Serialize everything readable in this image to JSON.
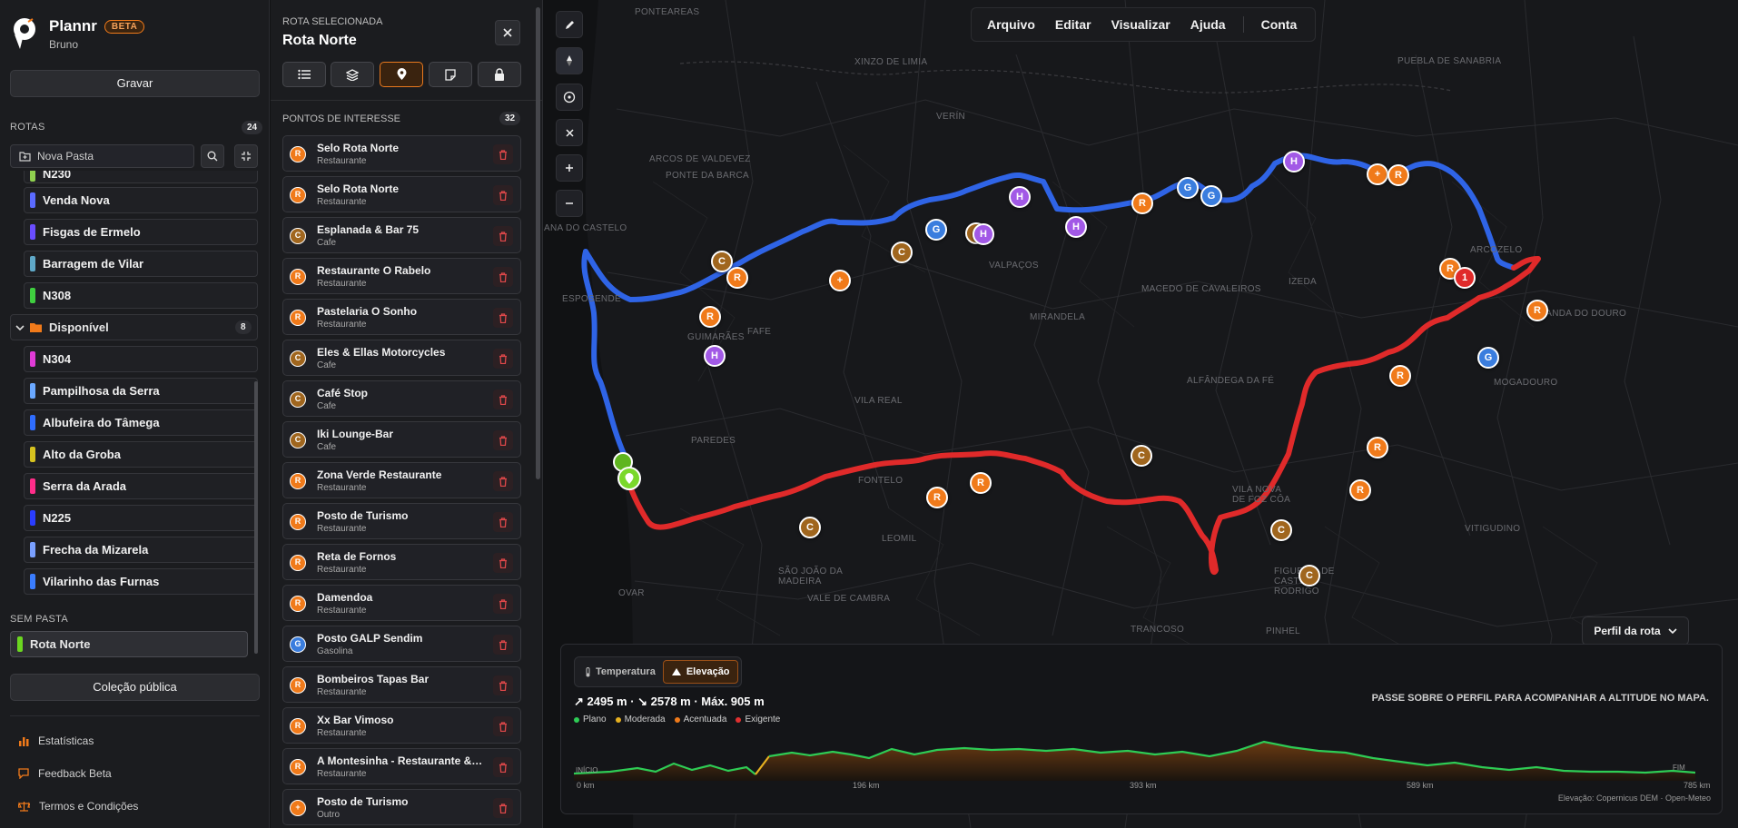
{
  "app": {
    "name": "Plannr",
    "badge": "BETA",
    "user": "Bruno"
  },
  "sidebar": {
    "record_label": "Gravar",
    "routes_label": "ROTAS",
    "routes_count": "24",
    "folder_placeholder": "Nova Pasta",
    "routes": [
      {
        "name": "N230",
        "color": "#8fd14f"
      },
      {
        "name": "Venda Nova",
        "color": "#5b6bff"
      },
      {
        "name": "Fisgas de Ermelo",
        "color": "#6a4dff"
      },
      {
        "name": "Barragem de Vilar",
        "color": "#5fa8c8"
      },
      {
        "name": "N308",
        "color": "#3fcf3f"
      }
    ],
    "folder": {
      "name": "Disponível",
      "count": "8"
    },
    "folder_routes": [
      {
        "name": "N304",
        "color": "#e03bd6"
      },
      {
        "name": "Pampilhosa da Serra",
        "color": "#6aa8ff"
      },
      {
        "name": "Albufeira do Tâmega",
        "color": "#2f6dff"
      },
      {
        "name": "Alto da Groba",
        "color": "#d6c21f"
      },
      {
        "name": "Serra da Arada",
        "color": "#ff2d8a"
      },
      {
        "name": "N225",
        "color": "#2a3dff"
      },
      {
        "name": "Frecha da Mizarela",
        "color": "#7aa0ff"
      },
      {
        "name": "Vilarinho das Furnas",
        "color": "#3a7dff"
      }
    ],
    "no_folder_label": "SEM PASTA",
    "active_route": "Rota Norte",
    "public_collection_label": "Coleção pública",
    "links": [
      "Estatísticas",
      "Feedback Beta",
      "Termos e Condições"
    ]
  },
  "panel": {
    "kicker": "ROTA SELECIONADA",
    "title": "Rota Norte",
    "poi_label": "PONTOS DE INTERESSE",
    "poi_count": "32",
    "pois": [
      {
        "letter": "R",
        "name": "Selo Rota Norte",
        "category": "Restaurante",
        "color": "#f07a1a"
      },
      {
        "letter": "R",
        "name": "Selo Rota Norte",
        "category": "Restaurante",
        "color": "#f07a1a"
      },
      {
        "letter": "C",
        "name": "Esplanada & Bar 75",
        "category": "Cafe",
        "color": "#a0661e"
      },
      {
        "letter": "R",
        "name": "Restaurante O Rabelo",
        "category": "Restaurante",
        "color": "#f07a1a"
      },
      {
        "letter": "R",
        "name": "Pastelaria O Sonho",
        "category": "Restaurante",
        "color": "#f07a1a"
      },
      {
        "letter": "C",
        "name": "Eles & Ellas Motorcycles",
        "category": "Cafe",
        "color": "#a0661e"
      },
      {
        "letter": "C",
        "name": "Café Stop",
        "category": "Cafe",
        "color": "#a0661e"
      },
      {
        "letter": "C",
        "name": "Iki Lounge-Bar",
        "category": "Cafe",
        "color": "#a0661e"
      },
      {
        "letter": "R",
        "name": "Zona Verde Restaurante",
        "category": "Restaurante",
        "color": "#f07a1a"
      },
      {
        "letter": "R",
        "name": "Posto de Turismo",
        "category": "Restaurante",
        "color": "#f07a1a"
      },
      {
        "letter": "R",
        "name": "Reta de Fornos",
        "category": "Restaurante",
        "color": "#f07a1a"
      },
      {
        "letter": "R",
        "name": "Damendoa",
        "category": "Restaurante",
        "color": "#f07a1a"
      },
      {
        "letter": "G",
        "name": "Posto GALP Sendim",
        "category": "Gasolina",
        "color": "#3a7dde"
      },
      {
        "letter": "R",
        "name": "Bombeiros Tapas Bar",
        "category": "Restaurante",
        "color": "#f07a1a"
      },
      {
        "letter": "R",
        "name": "Xx Bar Vimoso",
        "category": "Restaurante",
        "color": "#f07a1a"
      },
      {
        "letter": "R",
        "name": "A Montesinha - Restaurante & Snack-Bar",
        "category": "Restaurante",
        "color": "#f07a1a"
      },
      {
        "letter": "+",
        "name": "Posto de Turismo",
        "category": "Outro",
        "color": "#f07a1a"
      }
    ]
  },
  "map": {
    "menu": [
      "Arquivo",
      "Editar",
      "Visualizar",
      "Ajuda",
      "Conta"
    ],
    "labels": [
      "PONTEAREAS",
      "XINZO DE LIMIA",
      "VERÍN",
      "PUEBLA DE SANABRIA",
      "ARCOS DE VALDEVEZ",
      "PONTE DA BARCA",
      "VIANA DO CASTELO",
      "ESPOSENDE",
      "GUIMARÃES",
      "FAFE",
      "VALPAÇOS",
      "MACEDO DE CAVALEIROS",
      "IZEDA",
      "MIRANDELA",
      "ALFÂNDEGA DA FÉ",
      "VILA REAL",
      "PAREDES",
      "FONTELO",
      "LEOMIL",
      "VILA NOVA DE FOZ CÔA",
      "FIGUEIRA DE CASTELO RODRIGO",
      "VITIGUDINO",
      "SÃO JOÃO DA MADEIRA",
      "VALE DE CAMBRA",
      "OVAR",
      "TRANCOSO",
      "PINHEL",
      "MIRANDA DO DOURO",
      "ARCOZELO",
      "MOGADOURO"
    ],
    "profile_button": "Perfil da rota"
  },
  "elevation": {
    "tabs": [
      "Temperatura",
      "Elevação"
    ],
    "active_tab": "Elevação",
    "stats": "↗ 2495 m · ↘ 2578 m · Máx. 905 m",
    "hint": "PASSE SOBRE O PERFIL PARA ACOMPANHAR A ALTITUDE NO MAPA.",
    "legend": [
      {
        "label": "Plano",
        "color": "#2ecc55"
      },
      {
        "label": "Moderada",
        "color": "#e6b020"
      },
      {
        "label": "Acentuada",
        "color": "#f07a1a"
      },
      {
        "label": "Exigente",
        "color": "#e03030"
      }
    ],
    "axis": [
      "0 km",
      "196 km",
      "393 km",
      "589 km",
      "785 km"
    ],
    "start_label": "INÍCIO",
    "end_label": "FIM",
    "credit": "Elevação: Copernicus DEM · Open-Meteo"
  }
}
